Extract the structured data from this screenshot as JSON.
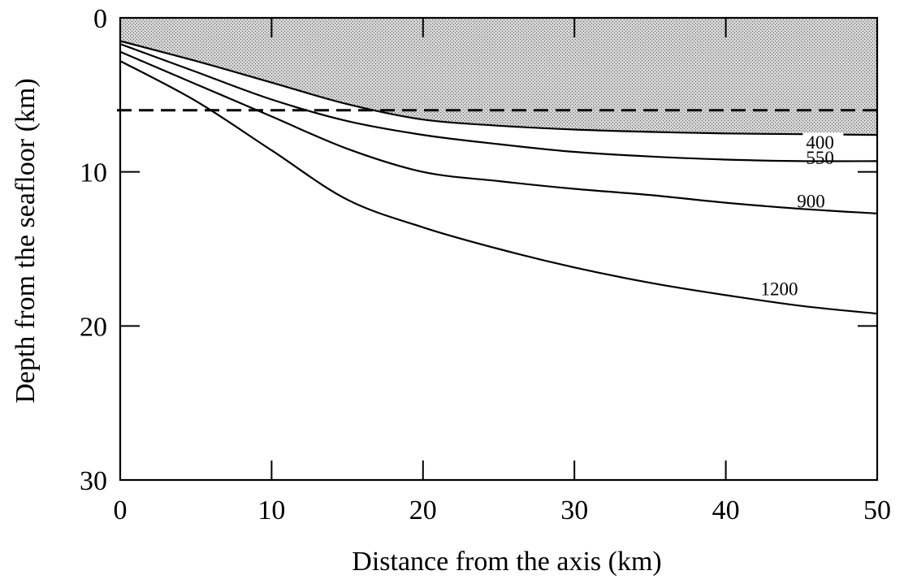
{
  "chart_data": {
    "type": "line",
    "title": "",
    "xlabel": "Distance from the axis (km)",
    "ylabel": "Depth from the seafloor (km)",
    "xlim": [
      0,
      50
    ],
    "ylim": [
      30,
      0
    ],
    "x_ticks": [
      "0",
      "10",
      "20",
      "30",
      "40",
      "50"
    ],
    "y_ticks": [
      "0",
      "10",
      "20",
      "30"
    ],
    "grid": false,
    "legend": "none",
    "shaded_region": {
      "upper_depth": 0,
      "lower_bound_series": "400",
      "fill_color": "#bdbdbd",
      "pattern": "stippled"
    },
    "reference_line": {
      "style": "dashed",
      "y": 6
    },
    "series": [
      {
        "name": "400",
        "x": [
          0,
          5,
          10,
          15,
          20,
          25,
          30,
          35,
          40,
          45,
          50
        ],
        "y": [
          1.5,
          2.8,
          4.2,
          5.6,
          6.6,
          7.0,
          7.25,
          7.4,
          7.5,
          7.55,
          7.6
        ]
      },
      {
        "name": "550",
        "x": [
          0,
          5,
          10,
          15,
          20,
          25,
          30,
          35,
          40,
          45,
          50
        ],
        "y": [
          1.7,
          3.5,
          5.3,
          6.7,
          7.6,
          8.2,
          8.7,
          9.0,
          9.2,
          9.3,
          9.3
        ]
      },
      {
        "name": "900",
        "x": [
          0,
          5,
          10,
          15,
          20,
          25,
          30,
          35,
          40,
          45,
          50
        ],
        "y": [
          2.2,
          4.3,
          6.4,
          8.5,
          10.0,
          10.6,
          11.1,
          11.5,
          12.0,
          12.4,
          12.7
        ]
      },
      {
        "name": "1200",
        "x": [
          0,
          5,
          10,
          15,
          20,
          25,
          30,
          35,
          40,
          45,
          50
        ],
        "y": [
          2.8,
          5.4,
          8.6,
          11.8,
          13.6,
          15.0,
          16.2,
          17.2,
          18.0,
          18.7,
          19.2
        ]
      }
    ]
  }
}
